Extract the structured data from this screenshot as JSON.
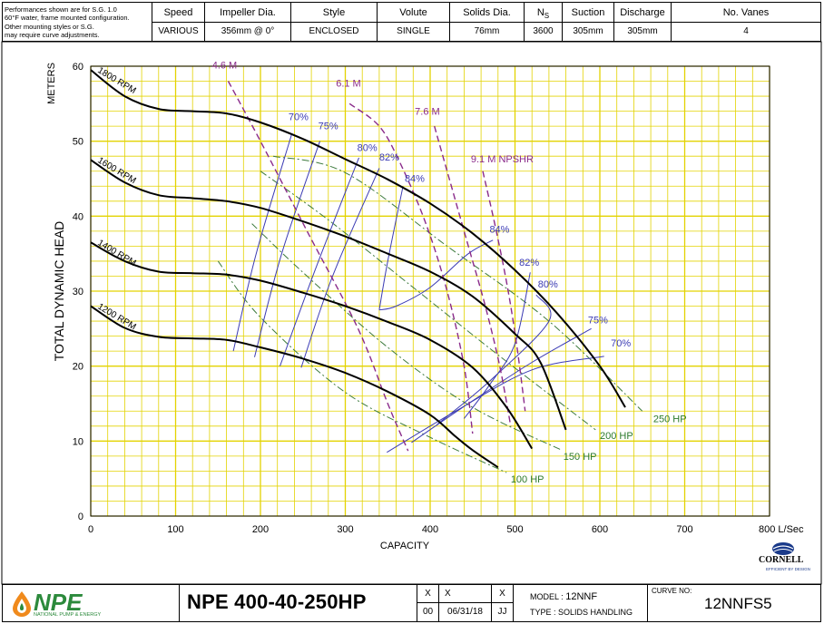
{
  "header": {
    "note": [
      "Performances shown are for S.G. 1.0",
      "60°F water, frame mounted configuration.",
      "Other mounting styles or S.G.",
      "may require curve adjustments."
    ],
    "columns": [
      {
        "label": "Speed",
        "value": "VARIOUS"
      },
      {
        "label": "Impeller Dia.",
        "value": "356mm @ 0°"
      },
      {
        "label": "Style",
        "value": "ENCLOSED"
      },
      {
        "label": "Volute",
        "value": "SINGLE"
      },
      {
        "label": "Solids Dia.",
        "value": "76mm"
      },
      {
        "label": "NS",
        "value": "3600"
      },
      {
        "label": "Suction",
        "value": "305mm"
      },
      {
        "label": "Discharge",
        "value": "305mm"
      },
      {
        "label": "No. Vanes",
        "value": "4"
      }
    ]
  },
  "chart_data": {
    "type": "line",
    "xlabel": "CAPACITY",
    "x_unit": "L/Sec",
    "ylabel": "TOTAL DYNAMIC HEAD",
    "y_unit": "METERS",
    "xlim": [
      0,
      800
    ],
    "ylim": [
      0,
      60
    ],
    "x_ticks": [
      0,
      100,
      200,
      300,
      400,
      500,
      600,
      700,
      800
    ],
    "y_ticks": [
      0,
      10,
      20,
      30,
      40,
      50,
      60
    ],
    "grid": true,
    "grid_color": "#e3d300",
    "speed_curves": [
      {
        "name": "1800 RPM",
        "color": "#000000",
        "points": [
          [
            0,
            59.5
          ],
          [
            40,
            56
          ],
          [
            80,
            54.3
          ],
          [
            120,
            54
          ],
          [
            160,
            53.7
          ],
          [
            200,
            52.5
          ],
          [
            250,
            50.3
          ],
          [
            300,
            47.6
          ],
          [
            350,
            44.9
          ],
          [
            400,
            41.7
          ],
          [
            450,
            37.7
          ],
          [
            500,
            32.8
          ],
          [
            550,
            27
          ],
          [
            600,
            20
          ],
          [
            630,
            14.5
          ]
        ]
      },
      {
        "name": "1600 RPM",
        "color": "#000000",
        "points": [
          [
            0,
            47.5
          ],
          [
            40,
            44.5
          ],
          [
            80,
            42.8
          ],
          [
            120,
            42.4
          ],
          [
            160,
            42
          ],
          [
            200,
            41.1
          ],
          [
            250,
            39.3
          ],
          [
            300,
            37.3
          ],
          [
            350,
            35
          ],
          [
            400,
            32.6
          ],
          [
            450,
            29.3
          ],
          [
            500,
            24.3
          ],
          [
            530,
            20.5
          ],
          [
            560,
            11.5
          ]
        ]
      },
      {
        "name": "1400 RPM",
        "color": "#000000",
        "points": [
          [
            0,
            36.5
          ],
          [
            40,
            34
          ],
          [
            80,
            32.6
          ],
          [
            120,
            32.4
          ],
          [
            160,
            32.2
          ],
          [
            200,
            31.4
          ],
          [
            250,
            29.8
          ],
          [
            300,
            28
          ],
          [
            350,
            25.9
          ],
          [
            400,
            23.5
          ],
          [
            450,
            19.8
          ],
          [
            490,
            14.5
          ],
          [
            520,
            9
          ]
        ]
      },
      {
        "name": "1200 RPM",
        "color": "#000000",
        "points": [
          [
            0,
            28
          ],
          [
            40,
            25.1
          ],
          [
            80,
            23.9
          ],
          [
            120,
            23.7
          ],
          [
            160,
            23.5
          ],
          [
            200,
            22.5
          ],
          [
            250,
            21
          ],
          [
            300,
            19.1
          ],
          [
            350,
            16.6
          ],
          [
            400,
            13.5
          ],
          [
            430,
            10.6
          ],
          [
            450,
            8.8
          ],
          [
            480,
            6.5
          ]
        ]
      }
    ],
    "efficiency_curves": [
      {
        "name": "70%",
        "color": "#3c3cb4",
        "points": [
          [
            168,
            22
          ],
          [
            195,
            35
          ],
          [
            237,
            51
          ]
        ],
        "points_b": [
          [
            349,
            8.5
          ],
          [
            430,
            14
          ],
          [
            520,
            19.5
          ],
          [
            605,
            21.3
          ]
        ],
        "label_left": [
          233,
          52.8
        ],
        "label_right": [
          613,
          22.6
        ]
      },
      {
        "name": "75%",
        "color": "#3c3cb4",
        "points": [
          [
            193,
            21.2
          ],
          [
            225,
            35
          ],
          [
            270,
            50
          ]
        ],
        "points_b": [
          [
            378,
            9.8
          ],
          [
            445,
            15
          ],
          [
            520,
            20.5
          ],
          [
            590,
            25
          ]
        ],
        "label_left": [
          268,
          51.6
        ],
        "label_right": [
          586,
          25.7
        ]
      },
      {
        "name": "80%",
        "color": "#3c3cb4",
        "points": [
          [
            223,
            20
          ],
          [
            265,
            33
          ],
          [
            316,
            47.8
          ]
        ],
        "points_b": [
          [
            408,
            12.2
          ],
          [
            470,
            18
          ],
          [
            540,
            26
          ],
          [
            525,
            29.5
          ]
        ],
        "label_left": [
          314,
          48.7
        ],
        "label_right": [
          527,
          30.5
        ]
      },
      {
        "name": "82%",
        "color": "#3c3cb4",
        "points": [
          [
            248,
            19.8
          ],
          [
            285,
            32
          ],
          [
            340,
            46.4
          ]
        ],
        "points_b": [
          [
            440,
            13
          ],
          [
            470,
            17.5
          ],
          [
            500,
            23
          ],
          [
            518,
            32.5
          ]
        ],
        "label_left": [
          340,
          47.4
        ],
        "label_right": [
          505,
          33.4
        ]
      },
      {
        "name": "84%",
        "color": "#3c3cb4",
        "points": [
          [
            340,
            27.5
          ],
          [
            350,
            34
          ],
          [
            368,
            44
          ]
        ],
        "points_b": [
          [
            340,
            27.5
          ],
          [
            360,
            28
          ],
          [
            400,
            30.5
          ],
          [
            445,
            35
          ],
          [
            474,
            36.8
          ]
        ],
        "label_left": [
          370,
          44.6
        ],
        "label_right": [
          470,
          37.8
        ]
      }
    ],
    "horsepower_curves": [
      {
        "name": "100 HP",
        "color": "#3c7a3c",
        "points": [
          [
            150,
            34
          ],
          [
            200,
            26.5
          ],
          [
            300,
            16.5
          ],
          [
            400,
            10.5
          ],
          [
            490,
            5.8
          ]
        ],
        "label": [
          495,
          4.5
        ]
      },
      {
        "name": "150 HP",
        "color": "#3c7a3c",
        "points": [
          [
            190,
            39
          ],
          [
            250,
            32.5
          ],
          [
            350,
            22.5
          ],
          [
            450,
            14.5
          ],
          [
            555,
            8.8
          ]
        ],
        "label": [
          557,
          7.5
        ]
      },
      {
        "name": "200 HP",
        "color": "#3c7a3c",
        "points": [
          [
            200,
            46
          ],
          [
            280,
            39.5
          ],
          [
            380,
            30.5
          ],
          [
            480,
            21.5
          ],
          [
            595,
            11.5
          ]
        ],
        "label": [
          600,
          10.3
        ]
      },
      {
        "name": "250 HP",
        "color": "#3c7a3c",
        "points": [
          [
            215,
            48
          ],
          [
            300,
            45.8
          ],
          [
            420,
            36
          ],
          [
            540,
            26
          ],
          [
            650,
            14
          ]
        ],
        "label": [
          663,
          12.5
        ]
      }
    ],
    "npshr_curves": [
      {
        "name": "4.6 M",
        "color": "#8a2b8a",
        "points": [
          [
            162,
            58
          ],
          [
            200,
            50
          ],
          [
            255,
            38
          ],
          [
            315,
            25
          ],
          [
            350,
            15
          ],
          [
            374,
            8.7
          ]
        ],
        "label": [
          143,
          59.7
        ]
      },
      {
        "name": "6.1 M",
        "color": "#8a2b8a",
        "points": [
          [
            305,
            55
          ],
          [
            340,
            52
          ],
          [
            365,
            47
          ],
          [
            395,
            39
          ],
          [
            420,
            30
          ],
          [
            440,
            20
          ],
          [
            450,
            11
          ]
        ],
        "label": [
          289,
          57.3
        ]
      },
      {
        "name": "7.6 M",
        "color": "#8a2b8a",
        "points": [
          [
            405,
            52
          ],
          [
            425,
            44
          ],
          [
            445,
            36
          ],
          [
            465,
            28
          ],
          [
            482,
            20
          ],
          [
            495,
            12
          ]
        ],
        "label": [
          382,
          53.5
        ]
      },
      {
        "name": "9.1 M NPSHR",
        "color": "#8a2b8a",
        "points": [
          [
            462,
            46
          ],
          [
            478,
            38
          ],
          [
            492,
            30
          ],
          [
            503,
            22
          ],
          [
            512,
            14
          ]
        ],
        "label": [
          448,
          47.2
        ]
      }
    ]
  },
  "footer": {
    "logo": "NPE",
    "logo_sub": "NATIONAL PUMP & ENERGY",
    "model_name": "NPE 400-40-250HP",
    "rev_top": [
      "X",
      "X",
      "X"
    ],
    "rev_bottom": [
      "00",
      "06/31/18",
      "JJ"
    ],
    "model_label": "MODEL :",
    "model_value": "12NNF",
    "type_label": "TYPE :",
    "type_value": "SOLIDS HANDLING",
    "curve_label": "CURVE NO:",
    "curve_value": "12NNFS5",
    "cornell": "CORNELL",
    "cornell_sub": "EFFICIENT BY DESIGN"
  }
}
